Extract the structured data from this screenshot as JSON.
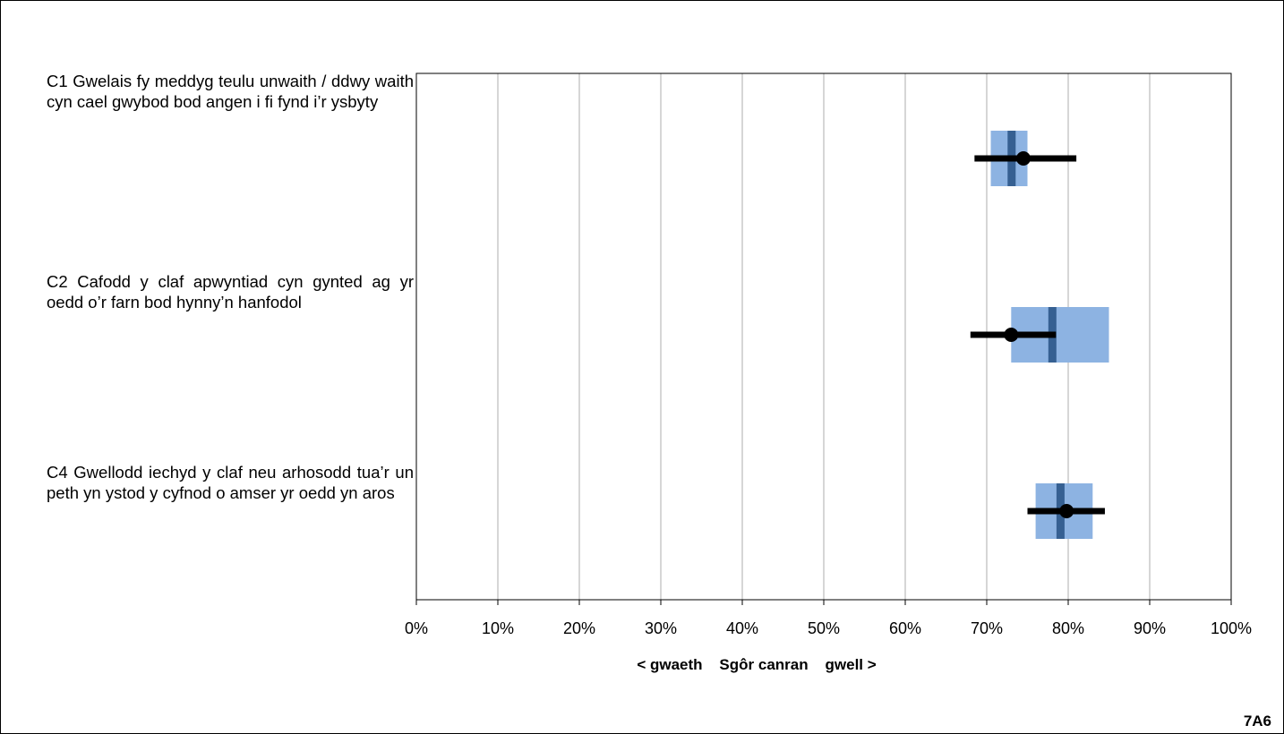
{
  "chart_data": {
    "type": "range_plot",
    "categories": [
      "C1 Gwelais fy meddyg teulu unwaith / ddwy waith cyn cael gwybod bod angen i fi fynd i’r ysbyty",
      "C2 Cafodd y claf apwyntiad cyn gynted ag yr oedd o’r farn bod hynny’n hanfodol",
      "C4 Gwellodd iechyd y claf neu arhosodd tua’r un peth yn ystod y cyfnod o amser yr oedd yn aros"
    ],
    "range_bar": [
      {
        "low": 70.5,
        "high": 75.0,
        "mid": 73.0
      },
      {
        "low": 73.0,
        "high": 85.0,
        "mid": 78.0
      },
      {
        "low": 76.0,
        "high": 83.0,
        "mid": 79.0
      }
    ],
    "point": [
      {
        "value": 74.5,
        "ci_low": 68.5,
        "ci_high": 81.0
      },
      {
        "value": 73.0,
        "ci_low": 68.0,
        "ci_high": 78.5
      },
      {
        "value": 79.8,
        "ci_low": 75.0,
        "ci_high": 84.5
      }
    ],
    "xlim": [
      0,
      100
    ],
    "x_ticks": [
      "0%",
      "10%",
      "20%",
      "30%",
      "40%",
      "50%",
      "60%",
      "70%",
      "80%",
      "90%",
      "100%"
    ],
    "x_ticks_values": [
      0,
      10,
      20,
      30,
      40,
      50,
      60,
      70,
      80,
      90,
      100
    ],
    "xlabel": "< gwaeth    Sgôr canran    gwell >",
    "grid": true,
    "colors": {
      "range_fill": "#8db3e2",
      "mid_line": "#366092",
      "point": "#000000",
      "grid": "#bfbfbf"
    }
  },
  "footer_code": "7A6"
}
